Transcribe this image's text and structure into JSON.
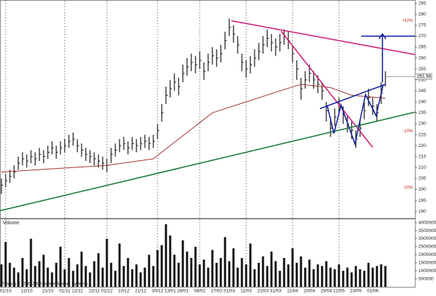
{
  "chart_data": [
    {
      "type": "ohlc",
      "color": "#111111",
      "high": [
        205,
        207,
        209,
        211,
        215,
        217,
        216,
        218,
        217,
        219,
        218,
        220,
        222,
        220,
        222,
        223,
        225,
        226,
        223,
        221,
        219,
        218,
        217,
        216,
        215,
        214,
        219,
        221,
        223,
        224,
        222,
        224,
        223,
        224,
        225,
        224,
        225,
        230,
        239,
        247,
        250,
        253,
        251,
        257,
        260,
        262,
        261,
        263,
        258,
        262,
        265,
        264,
        266,
        272,
        278,
        275,
        270,
        262,
        259,
        261,
        264,
        267,
        270,
        273,
        271,
        269,
        271,
        273,
        272,
        266,
        259,
        251,
        254,
        257,
        254,
        252,
        249,
        240,
        232,
        237,
        242,
        238,
        234,
        231,
        227,
        232,
        240,
        246,
        242,
        239,
        249,
        254
      ],
      "low": [
        198,
        201,
        203,
        205,
        209,
        211,
        210,
        212,
        211,
        213,
        212,
        214,
        216,
        214,
        216,
        217,
        219,
        220,
        217,
        215,
        213,
        212,
        211,
        210,
        209,
        208,
        212,
        215,
        217,
        218,
        216,
        218,
        217,
        218,
        219,
        218,
        219,
        223,
        231,
        239,
        242,
        245,
        243,
        249,
        252,
        254,
        253,
        255,
        250,
        254,
        257,
        256,
        258,
        264,
        270,
        267,
        262,
        254,
        251,
        253,
        256,
        259,
        262,
        265,
        263,
        261,
        263,
        266,
        264,
        258,
        250,
        241,
        246,
        249,
        246,
        244,
        241,
        231,
        224,
        229,
        235,
        230,
        226,
        223,
        219,
        224,
        232,
        238,
        234,
        231,
        239,
        247
      ],
      "close": [
        202,
        204,
        206,
        208,
        212,
        214,
        213,
        215,
        214,
        216,
        215,
        217,
        219,
        217,
        219,
        220,
        222,
        223,
        220,
        218,
        216,
        215,
        214,
        213,
        212,
        211,
        216,
        218,
        220,
        221,
        219,
        221,
        220,
        221,
        222,
        221,
        222,
        227,
        235,
        243,
        246,
        249,
        247,
        253,
        256,
        258,
        257,
        259,
        254,
        258,
        261,
        260,
        262,
        268,
        274,
        271,
        266,
        258,
        255,
        257,
        260,
        263,
        266,
        269,
        267,
        265,
        267,
        270,
        268,
        262,
        255,
        246,
        250,
        253,
        250,
        248,
        245,
        236,
        228,
        233,
        239,
        234,
        230,
        227,
        223,
        228,
        236,
        242,
        238,
        235,
        244,
        251.56
      ],
      "xlim": [
        -0.33,
        98
      ],
      "ylim": [
        187,
        286.5
      ],
      "yticks": [
        190,
        195,
        200,
        205,
        210,
        215,
        220,
        225,
        230,
        235,
        240,
        245,
        250,
        255,
        260,
        265,
        270,
        275,
        280,
        285
      ],
      "overlays": [
        {
          "color": "#a03030",
          "x": [
            0,
            25,
            36,
            50,
            58,
            66,
            71,
            78,
            83,
            91
          ],
          "y": [
            208,
            211,
            214,
            235,
            240,
            245,
            248,
            246.5,
            243,
            241.7
          ]
        },
        {
          "color": "#d0207a",
          "x": [
            54.5,
            98
          ],
          "y": [
            277,
            261.6
          ]
        },
        {
          "color": "#d0207a",
          "x": [
            66.3,
            88
          ],
          "y": [
            272.2,
            219.2
          ]
        },
        {
          "color": "#1a7a3a",
          "x": [
            -0.33,
            98
          ],
          "y": [
            190.3,
            235.3
          ]
        },
        {
          "color": "#1020a0",
          "x": [
            75.5,
            91
          ],
          "y": [
            236.9,
            248
          ]
        },
        {
          "color": "#1020a0",
          "x": [
            77.2,
            78.8,
            80.5,
            83.8,
            86.3,
            88.8,
            90.5
          ],
          "y": [
            238.5,
            225.6,
            238.5,
            220.8,
            243.3,
            233.7,
            248
          ]
        },
        {
          "color": "#1020a0",
          "x": [
            90.3,
            90.3
          ],
          "y": [
            249,
            271
          ],
          "arrow": true
        },
        {
          "color": "#1020a0",
          "x": [
            85.3,
            98
          ],
          "y": [
            270,
            270
          ]
        }
      ],
      "annotations": [
        {
          "text": "+10%",
          "y": 277
        },
        {
          "text": "-10%",
          "y": 226.6
        },
        {
          "text": "-20%",
          "y": 200.9
        }
      ]
    },
    {
      "type": "bar",
      "title": "Volume",
      "color": "#111111",
      "values": [
        1400000,
        2800000,
        1500000,
        1200000,
        900000,
        1800000,
        1100000,
        3000000,
        1300000,
        1600000,
        2000000,
        1200000,
        900000,
        1500000,
        2500000,
        1100000,
        1800000,
        1000000,
        1400000,
        2200000,
        1300000,
        900000,
        1600000,
        2100000,
        1200000,
        3000000,
        1500000,
        1000000,
        2700000,
        1300000,
        1800000,
        1100000,
        1400000,
        900000,
        1200000,
        2000000,
        1300000,
        2300000,
        2600000,
        3900000,
        3200000,
        2000000,
        1500000,
        2900000,
        2200000,
        1800000,
        2500000,
        1400000,
        1700000,
        1200000,
        2300000,
        1500000,
        1800000,
        3100000,
        1600000,
        2400000,
        1200000,
        1800000,
        1400000,
        2700000,
        1100000,
        1500000,
        1900000,
        1300000,
        2200000,
        1600000,
        1000000,
        1800000,
        1400000,
        2400000,
        1500000,
        1900000,
        1200000,
        1700000,
        1100000,
        1400000,
        1300000,
        1600000,
        1200000,
        1100000,
        1400000,
        1000000,
        1200000,
        900000,
        1300000,
        1100000,
        1000000,
        1500000,
        1200000,
        1300000,
        1400000,
        1300000
      ],
      "xlim": [
        -0.33,
        98
      ],
      "ylim": [
        0,
        4250000
      ],
      "yticks": [
        500000,
        1000000,
        1500000,
        2000000,
        2500000,
        3000000,
        3500000,
        4000000
      ],
      "xticks": [
        {
          "value": 1,
          "label": "01/10"
        },
        {
          "value": 6,
          "label": "12/10"
        },
        {
          "value": 11,
          "label": "21/10"
        },
        {
          "value": 15,
          "label": "01/11"
        },
        {
          "value": 18,
          "label": "12/11"
        },
        {
          "value": 22,
          "label": "22/11"
        },
        {
          "value": 25,
          "label": "01/12"
        },
        {
          "value": 29,
          "label": "10/12"
        },
        {
          "value": 33,
          "label": "21/12"
        },
        {
          "value": 37,
          "label": "30/12"
        },
        {
          "value": 40,
          "label": "13/01"
        },
        {
          "value": 43,
          "label": "28/01"
        },
        {
          "value": 47,
          "label": "08/02"
        },
        {
          "value": 51,
          "label": "17/02"
        },
        {
          "value": 54,
          "label": "01/03"
        },
        {
          "value": 58,
          "label": "11/03"
        },
        {
          "value": 62,
          "label": "22/03"
        },
        {
          "value": 65,
          "label": "31/03"
        },
        {
          "value": 69,
          "label": "11/04"
        },
        {
          "value": 73,
          "label": "20/04"
        },
        {
          "value": 77,
          "label": "29/04"
        },
        {
          "value": 80,
          "label": "12/05"
        },
        {
          "value": 84,
          "label": "23/05"
        },
        {
          "value": 88,
          "label": "01/06"
        }
      ],
      "footnote": "Transig © 2000-2009 Screen Market Systems"
    }
  ]
}
